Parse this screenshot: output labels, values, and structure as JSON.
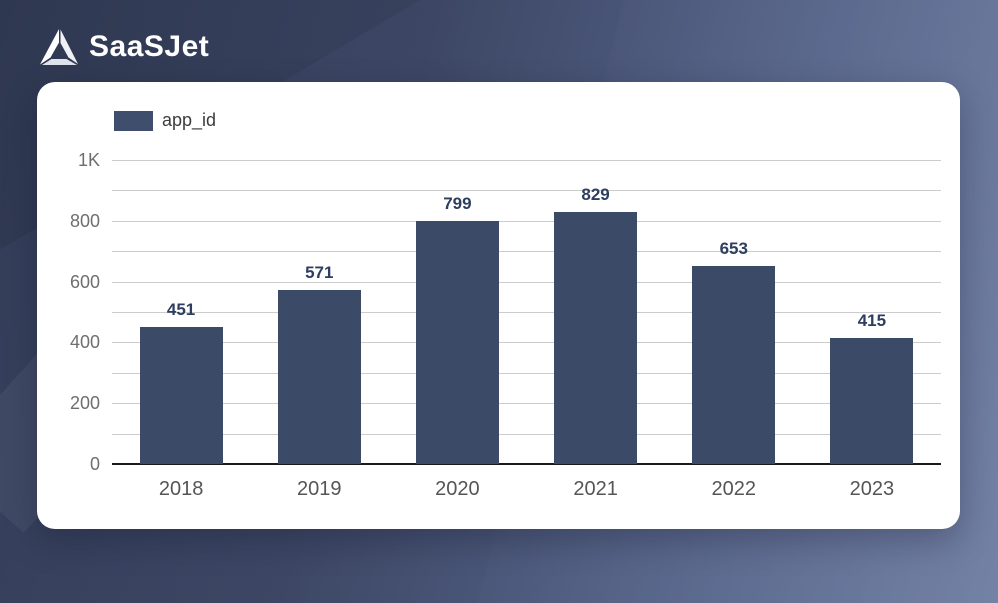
{
  "logo": {
    "text": "SaaSJet"
  },
  "chart_data": {
    "type": "bar",
    "title": "",
    "legend": {
      "label": "app_id",
      "swatch_color": "#3f4e6c",
      "position": "top-left"
    },
    "categories": [
      "2018",
      "2019",
      "2020",
      "2021",
      "2022",
      "2023"
    ],
    "series": [
      {
        "name": "app_id",
        "values": [
          451,
          571,
          799,
          829,
          653,
          415
        ]
      }
    ],
    "value_labels_shown": true,
    "xlabel": "",
    "ylabel": "",
    "ylim": [
      0,
      1000
    ],
    "grid": true,
    "grid_step": 100,
    "yticks": [
      {
        "value": 0,
        "label": "0"
      },
      {
        "value": 200,
        "label": "200"
      },
      {
        "value": 400,
        "label": "400"
      },
      {
        "value": 600,
        "label": "600"
      },
      {
        "value": 800,
        "label": "800"
      },
      {
        "value": 1000,
        "label": "1K"
      }
    ],
    "colors": {
      "bar": "#3b4a66",
      "value_label": "#2d3e5f",
      "axis_tick_label": "#6e6e6e",
      "gridline": "#cccccc",
      "axis_line": "#1a1a1a"
    }
  },
  "background": {
    "gradient_start": "#333d58",
    "gradient_end": "#6b7aa0",
    "card_color": "#ffffff"
  }
}
